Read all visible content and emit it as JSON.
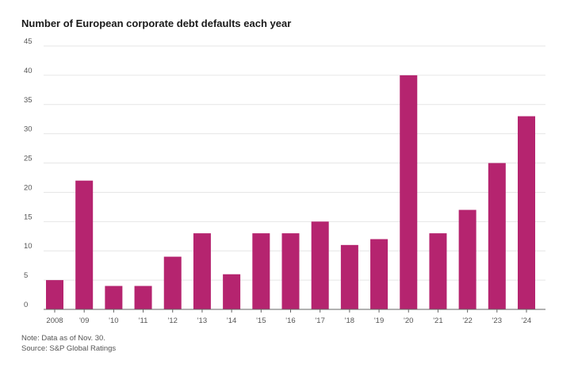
{
  "chart_data": {
    "type": "bar",
    "title": "Number of European corporate debt defaults each year",
    "categories": [
      "2008",
      "'09",
      "'10",
      "'11",
      "'12",
      "'13",
      "'14",
      "'15",
      "'16",
      "'17",
      "'18",
      "'19",
      "'20",
      "'21",
      "'22",
      "'23",
      "'24"
    ],
    "values": [
      5,
      22,
      4,
      4,
      9,
      13,
      6,
      13,
      13,
      15,
      11,
      12,
      40,
      13,
      17,
      25,
      33
    ],
    "ylim": [
      0,
      45
    ],
    "yticks": [
      0,
      5,
      10,
      15,
      20,
      25,
      30,
      35,
      40,
      45
    ],
    "xlabel": "",
    "ylabel": "",
    "grid": true,
    "bar_color": "#b5246f"
  },
  "notes": {
    "note": "Note: Data as of Nov. 30.",
    "source": "Source: S&P Global Ratings"
  }
}
